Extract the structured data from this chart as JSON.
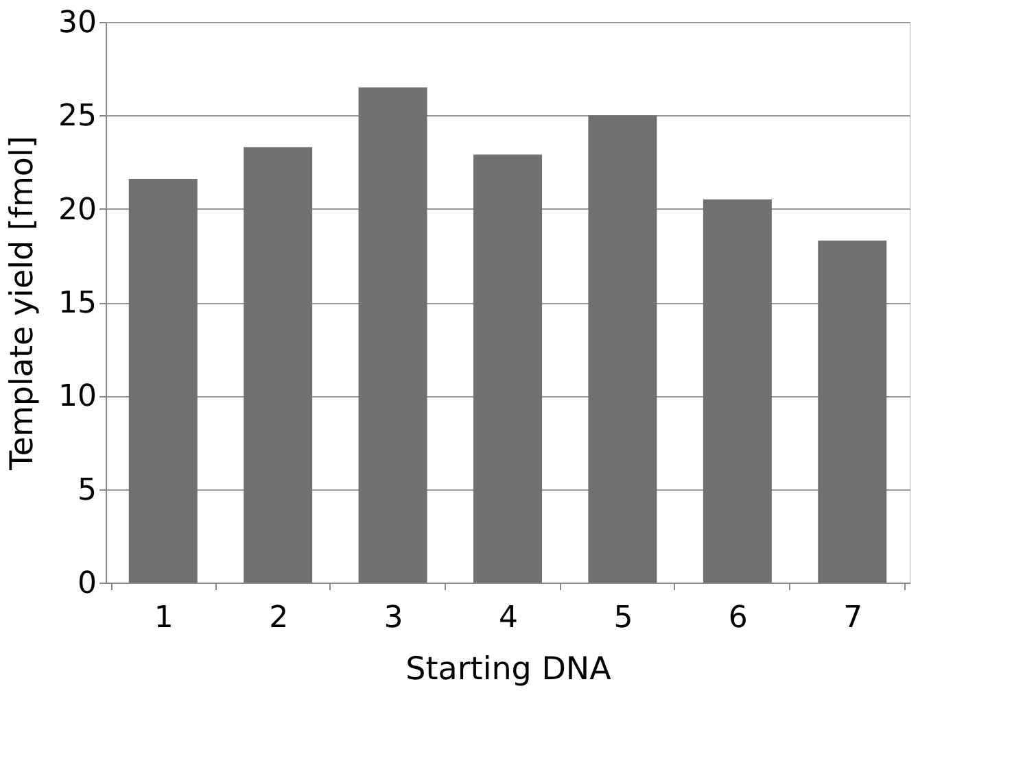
{
  "chart_data": {
    "type": "bar",
    "xlabel": "Starting DNA",
    "ylabel": "Template yield [fmol]",
    "categories": [
      "1",
      "2",
      "3",
      "4",
      "5",
      "6",
      "7"
    ],
    "values": [
      21.6,
      23.3,
      26.5,
      22.9,
      25.0,
      20.5,
      18.3
    ],
    "color": "#707070",
    "ylim": [
      0,
      30
    ],
    "yticks": [
      0,
      5,
      10,
      15,
      20,
      25,
      30
    ],
    "grid": "y"
  }
}
